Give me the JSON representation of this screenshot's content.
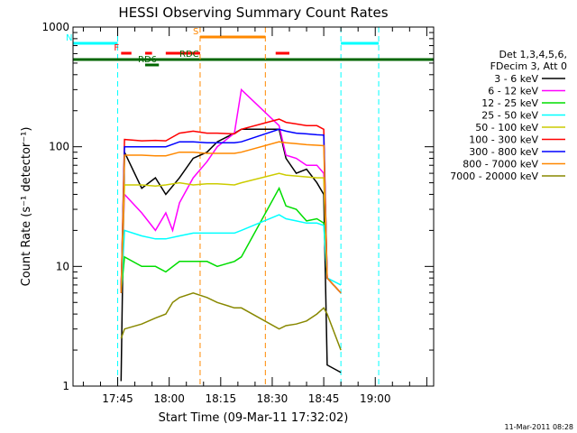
{
  "chart_data": {
    "type": "line",
    "title": "HESSI Observing Summary Count Rates",
    "xlabel": "Start Time (09-Mar-11 17:32:02)",
    "ylabel": "Count Rate (s⁻¹ detector⁻¹)",
    "y_scale": "log",
    "ylim": [
      1,
      1000
    ],
    "xlim_minutes_after_1732": [
      0,
      105
    ],
    "x_ticks": [
      "17:45",
      "18:00",
      "18:15",
      "18:30",
      "18:45",
      "19:00"
    ],
    "y_ticks": [
      "1",
      "10",
      "100",
      "1000"
    ],
    "legend_position": "right",
    "legend_header": [
      "Det 1,3,4,5,6,",
      "FDecim 3, Att 0"
    ],
    "footer_timestamp": "11-Mar-2011 08:28",
    "series": [
      {
        "name": "3 - 6 keV",
        "color": "#000000",
        "values": [
          [
            14,
            1.1
          ],
          [
            15,
            90
          ],
          [
            20,
            45
          ],
          [
            24,
            55
          ],
          [
            27,
            40
          ],
          [
            31,
            55
          ],
          [
            35,
            80
          ],
          [
            39,
            90
          ],
          [
            42,
            110
          ],
          [
            47,
            130
          ],
          [
            49,
            140
          ],
          [
            60,
            140
          ],
          [
            62,
            80
          ],
          [
            65,
            60
          ],
          [
            68,
            65
          ],
          [
            71,
            50
          ],
          [
            73,
            40
          ],
          [
            74,
            1.5
          ],
          [
            78,
            1.3
          ]
        ]
      },
      {
        "name": "6 - 12 keV",
        "color": "#ff00ff",
        "values": [
          [
            14,
            7
          ],
          [
            15,
            40
          ],
          [
            20,
            28
          ],
          [
            24,
            20
          ],
          [
            27,
            28
          ],
          [
            29,
            20
          ],
          [
            31,
            34
          ],
          [
            35,
            55
          ],
          [
            39,
            75
          ],
          [
            42,
            100
          ],
          [
            47,
            130
          ],
          [
            49,
            300
          ],
          [
            60,
            150
          ],
          [
            62,
            85
          ],
          [
            65,
            80
          ],
          [
            68,
            70
          ],
          [
            71,
            70
          ],
          [
            73,
            60
          ],
          [
            74,
            8
          ],
          [
            78,
            6
          ]
        ]
      },
      {
        "name": "12 - 25 keV",
        "color": "#00dd00",
        "values": [
          [
            14,
            6
          ],
          [
            15,
            12
          ],
          [
            20,
            10
          ],
          [
            24,
            10
          ],
          [
            27,
            9
          ],
          [
            31,
            11
          ],
          [
            35,
            11
          ],
          [
            39,
            11
          ],
          [
            42,
            10
          ],
          [
            47,
            11
          ],
          [
            49,
            12
          ],
          [
            60,
            45
          ],
          [
            62,
            32
          ],
          [
            65,
            30
          ],
          [
            68,
            24
          ],
          [
            71,
            25
          ],
          [
            73,
            23
          ],
          [
            74,
            8
          ],
          [
            78,
            6
          ]
        ]
      },
      {
        "name": "25 - 50 keV",
        "color": "#00ffff",
        "values": [
          [
            14,
            6
          ],
          [
            15,
            20
          ],
          [
            20,
            18
          ],
          [
            24,
            17
          ],
          [
            27,
            17
          ],
          [
            31,
            18
          ],
          [
            35,
            19
          ],
          [
            39,
            19
          ],
          [
            42,
            19
          ],
          [
            47,
            19
          ],
          [
            49,
            20
          ],
          [
            60,
            27
          ],
          [
            62,
            25
          ],
          [
            65,
            24
          ],
          [
            68,
            23
          ],
          [
            71,
            23
          ],
          [
            73,
            22
          ],
          [
            74,
            8
          ],
          [
            78,
            7
          ]
        ]
      },
      {
        "name": "50 - 100 keV",
        "color": "#cccc00",
        "values": [
          [
            14,
            6
          ],
          [
            15,
            48
          ],
          [
            20,
            48
          ],
          [
            24,
            47
          ],
          [
            27,
            48
          ],
          [
            31,
            50
          ],
          [
            35,
            48
          ],
          [
            39,
            49
          ],
          [
            42,
            49
          ],
          [
            47,
            48
          ],
          [
            49,
            50
          ],
          [
            60,
            60
          ],
          [
            62,
            58
          ],
          [
            65,
            57
          ],
          [
            68,
            56
          ],
          [
            71,
            55
          ],
          [
            73,
            55
          ],
          [
            74,
            8
          ],
          [
            78,
            6
          ]
        ]
      },
      {
        "name": "100 - 300 keV",
        "color": "#ff0000",
        "values": [
          [
            14,
            6
          ],
          [
            15,
            115
          ],
          [
            20,
            112
          ],
          [
            24,
            113
          ],
          [
            27,
            112
          ],
          [
            31,
            130
          ],
          [
            35,
            135
          ],
          [
            39,
            130
          ],
          [
            42,
            130
          ],
          [
            47,
            128
          ],
          [
            49,
            140
          ],
          [
            60,
            170
          ],
          [
            62,
            160
          ],
          [
            65,
            155
          ],
          [
            68,
            150
          ],
          [
            71,
            150
          ],
          [
            73,
            140
          ],
          [
            74,
            8
          ],
          [
            78,
            6
          ]
        ]
      },
      {
        "name": "300 - 800 keV",
        "color": "#0000ff",
        "values": [
          [
            14,
            6
          ],
          [
            15,
            100
          ],
          [
            20,
            100
          ],
          [
            24,
            100
          ],
          [
            27,
            100
          ],
          [
            31,
            110
          ],
          [
            35,
            110
          ],
          [
            39,
            108
          ],
          [
            42,
            108
          ],
          [
            47,
            108
          ],
          [
            49,
            110
          ],
          [
            60,
            140
          ],
          [
            62,
            135
          ],
          [
            65,
            130
          ],
          [
            68,
            128
          ],
          [
            71,
            126
          ],
          [
            73,
            125
          ],
          [
            74,
            8
          ],
          [
            78,
            6
          ]
        ]
      },
      {
        "name": "800 - 7000 keV",
        "color": "#ff8800",
        "values": [
          [
            14,
            6
          ],
          [
            15,
            85
          ],
          [
            20,
            85
          ],
          [
            24,
            84
          ],
          [
            27,
            84
          ],
          [
            31,
            90
          ],
          [
            35,
            90
          ],
          [
            39,
            88
          ],
          [
            42,
            88
          ],
          [
            47,
            88
          ],
          [
            49,
            90
          ],
          [
            60,
            110
          ],
          [
            62,
            108
          ],
          [
            65,
            106
          ],
          [
            68,
            104
          ],
          [
            71,
            103
          ],
          [
            73,
            102
          ],
          [
            74,
            8
          ],
          [
            78,
            6
          ]
        ]
      },
      {
        "name": "7000 - 20000 keV",
        "color": "#888800",
        "values": [
          [
            14,
            2.5
          ],
          [
            15,
            3
          ],
          [
            20,
            3.3
          ],
          [
            24,
            3.7
          ],
          [
            27,
            4
          ],
          [
            29,
            5
          ],
          [
            31,
            5.5
          ],
          [
            35,
            6
          ],
          [
            39,
            5.5
          ],
          [
            42,
            5
          ],
          [
            47,
            4.5
          ],
          [
            49,
            4.5
          ],
          [
            60,
            3
          ],
          [
            62,
            3.2
          ],
          [
            65,
            3.3
          ],
          [
            68,
            3.5
          ],
          [
            71,
            4
          ],
          [
            73,
            4.5
          ],
          [
            74,
            4
          ],
          [
            78,
            2
          ]
        ]
      }
    ],
    "annotations": [
      {
        "label": "N",
        "color": "#00ffff",
        "segments": [
          [
            0,
            13
          ],
          [
            78,
            89
          ]
        ],
        "vlines": [
          13,
          78,
          89
        ]
      },
      {
        "label": "F",
        "color": "#ff0000",
        "segments": [
          [
            14,
            17
          ],
          [
            21,
            23
          ],
          [
            27,
            37
          ],
          [
            59,
            63
          ]
        ]
      },
      {
        "label": "RD6",
        "color": "#006600",
        "segments": [
          [
            21,
            25
          ]
        ]
      },
      {
        "label": "RDC",
        "color": "#006600",
        "segments": [
          [
            0,
            105
          ]
        ]
      },
      {
        "label": "S",
        "color": "#ff8800",
        "segments": [
          [
            37,
            56
          ]
        ],
        "vlines": [
          37,
          56
        ]
      }
    ]
  }
}
